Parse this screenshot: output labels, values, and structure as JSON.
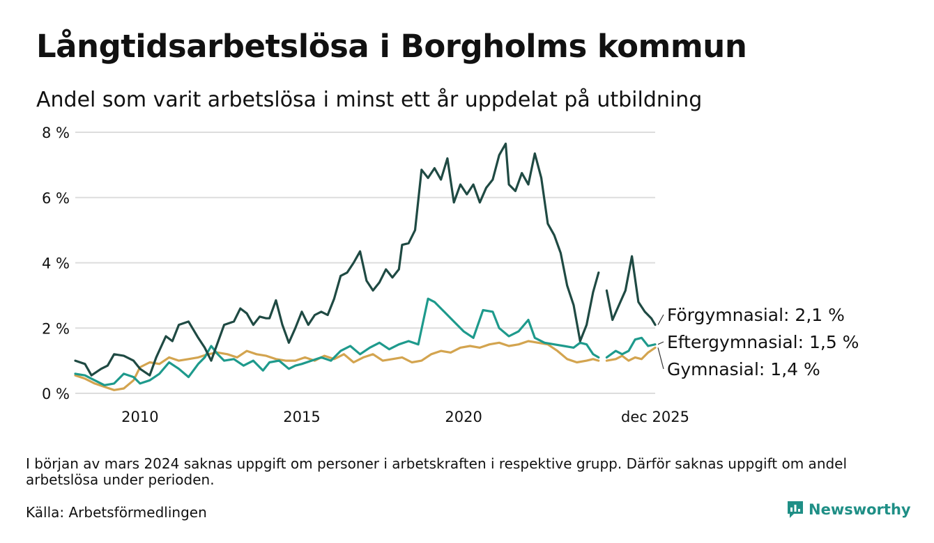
{
  "title": "Långtidsarbetslösa i Borgholms kommun",
  "subtitle": "Andel som varit arbetslösa i minst ett år uppdelat på utbildning",
  "note": "I början av mars 2024 saknas uppgift om personer i arbetskraften i respektive grupp. Därför saknas uppgift om andel arbetslösa under perioden.",
  "source": "Källa: Arbetsförmedlingen",
  "brand": "Newsworthy",
  "colors": {
    "forgymnasial": "#1f4a43",
    "eftergymnasial": "#1e9a8c",
    "gymnasial": "#d3a44f",
    "grid": "#dddddd",
    "brand": "#1f8f86"
  },
  "chart_data": {
    "type": "line",
    "title": "Långtidsarbetslösa i Borgholms kommun",
    "xlabel": "",
    "ylabel": "",
    "xlim": [
      2008.0,
      2025.92
    ],
    "ylim": [
      0,
      8
    ],
    "yticks": [
      0,
      2,
      4,
      6,
      8
    ],
    "ytick_labels": [
      "0 %",
      "2 %",
      "4 %",
      "6 %",
      "8 %"
    ],
    "xticks": [
      2010,
      2015,
      2020,
      2025.92
    ],
    "xtick_labels": [
      "2010",
      "2015",
      "2020",
      "dec 2025"
    ],
    "grid": true,
    "gap": [
      2024.17,
      2024.42
    ],
    "series": [
      {
        "name": "Förgymnasial",
        "label": "Förgymnasial: 2,1 %",
        "color": "#1f4a43",
        "points": [
          [
            2008.0,
            1.0
          ],
          [
            2008.3,
            0.9
          ],
          [
            2008.5,
            0.55
          ],
          [
            2008.8,
            0.75
          ],
          [
            2009.0,
            0.85
          ],
          [
            2009.2,
            1.2
          ],
          [
            2009.5,
            1.15
          ],
          [
            2009.8,
            1.0
          ],
          [
            2010.0,
            0.75
          ],
          [
            2010.3,
            0.55
          ],
          [
            2010.5,
            1.1
          ],
          [
            2010.8,
            1.75
          ],
          [
            2011.0,
            1.6
          ],
          [
            2011.2,
            2.1
          ],
          [
            2011.5,
            2.2
          ],
          [
            2011.8,
            1.7
          ],
          [
            2012.0,
            1.4
          ],
          [
            2012.2,
            1.0
          ],
          [
            2012.4,
            1.55
          ],
          [
            2012.6,
            2.1
          ],
          [
            2012.9,
            2.2
          ],
          [
            2013.1,
            2.6
          ],
          [
            2013.3,
            2.45
          ],
          [
            2013.5,
            2.1
          ],
          [
            2013.7,
            2.35
          ],
          [
            2013.9,
            2.3
          ],
          [
            2014.0,
            2.3
          ],
          [
            2014.2,
            2.85
          ],
          [
            2014.4,
            2.1
          ],
          [
            2014.6,
            1.55
          ],
          [
            2014.8,
            2.0
          ],
          [
            2015.0,
            2.5
          ],
          [
            2015.2,
            2.1
          ],
          [
            2015.4,
            2.4
          ],
          [
            2015.6,
            2.5
          ],
          [
            2015.8,
            2.4
          ],
          [
            2016.0,
            2.9
          ],
          [
            2016.2,
            3.6
          ],
          [
            2016.4,
            3.7
          ],
          [
            2016.6,
            4.0
          ],
          [
            2016.8,
            4.35
          ],
          [
            2017.0,
            3.45
          ],
          [
            2017.2,
            3.15
          ],
          [
            2017.4,
            3.4
          ],
          [
            2017.6,
            3.8
          ],
          [
            2017.8,
            3.55
          ],
          [
            2018.0,
            3.8
          ],
          [
            2018.1,
            4.55
          ],
          [
            2018.3,
            4.6
          ],
          [
            2018.5,
            5.0
          ],
          [
            2018.7,
            6.85
          ],
          [
            2018.9,
            6.6
          ],
          [
            2019.1,
            6.9
          ],
          [
            2019.3,
            6.55
          ],
          [
            2019.5,
            7.2
          ],
          [
            2019.7,
            5.85
          ],
          [
            2019.9,
            6.4
          ],
          [
            2020.1,
            6.1
          ],
          [
            2020.3,
            6.4
          ],
          [
            2020.5,
            5.85
          ],
          [
            2020.7,
            6.3
          ],
          [
            2020.9,
            6.55
          ],
          [
            2021.1,
            7.3
          ],
          [
            2021.3,
            7.65
          ],
          [
            2021.4,
            6.4
          ],
          [
            2021.6,
            6.2
          ],
          [
            2021.8,
            6.75
          ],
          [
            2022.0,
            6.4
          ],
          [
            2022.2,
            7.35
          ],
          [
            2022.4,
            6.6
          ],
          [
            2022.6,
            5.2
          ],
          [
            2022.8,
            4.85
          ],
          [
            2023.0,
            4.3
          ],
          [
            2023.2,
            3.3
          ],
          [
            2023.4,
            2.7
          ],
          [
            2023.6,
            1.6
          ],
          [
            2023.8,
            2.1
          ],
          [
            2024.0,
            3.1
          ],
          [
            2024.17,
            3.7
          ]
        ],
        "points_after_gap": [
          [
            2024.42,
            3.15
          ],
          [
            2024.6,
            2.25
          ],
          [
            2024.8,
            2.7
          ],
          [
            2025.0,
            3.15
          ],
          [
            2025.2,
            4.2
          ],
          [
            2025.4,
            2.8
          ],
          [
            2025.6,
            2.5
          ],
          [
            2025.8,
            2.3
          ],
          [
            2025.92,
            2.1
          ]
        ]
      },
      {
        "name": "Eftergymnasial",
        "label": "Eftergymnasial: 1,5 %",
        "color": "#1e9a8c",
        "points": [
          [
            2008.0,
            0.6
          ],
          [
            2008.3,
            0.55
          ],
          [
            2008.6,
            0.4
          ],
          [
            2008.9,
            0.25
          ],
          [
            2009.2,
            0.3
          ],
          [
            2009.5,
            0.6
          ],
          [
            2009.8,
            0.5
          ],
          [
            2010.0,
            0.3
          ],
          [
            2010.3,
            0.4
          ],
          [
            2010.6,
            0.6
          ],
          [
            2010.9,
            0.95
          ],
          [
            2011.2,
            0.75
          ],
          [
            2011.5,
            0.5
          ],
          [
            2011.8,
            0.9
          ],
          [
            2012.0,
            1.1
          ],
          [
            2012.2,
            1.45
          ],
          [
            2012.4,
            1.2
          ],
          [
            2012.6,
            1.0
          ],
          [
            2012.9,
            1.05
          ],
          [
            2013.2,
            0.85
          ],
          [
            2013.5,
            1.0
          ],
          [
            2013.8,
            0.7
          ],
          [
            2014.0,
            0.95
          ],
          [
            2014.3,
            1.0
          ],
          [
            2014.6,
            0.75
          ],
          [
            2014.8,
            0.85
          ],
          [
            2015.0,
            0.9
          ],
          [
            2015.3,
            1.0
          ],
          [
            2015.6,
            1.1
          ],
          [
            2015.9,
            1.0
          ],
          [
            2016.2,
            1.3
          ],
          [
            2016.5,
            1.45
          ],
          [
            2016.8,
            1.2
          ],
          [
            2017.1,
            1.4
          ],
          [
            2017.4,
            1.55
          ],
          [
            2017.7,
            1.35
          ],
          [
            2018.0,
            1.5
          ],
          [
            2018.3,
            1.6
          ],
          [
            2018.6,
            1.5
          ],
          [
            2018.9,
            2.9
          ],
          [
            2019.1,
            2.8
          ],
          [
            2019.4,
            2.5
          ],
          [
            2019.7,
            2.2
          ],
          [
            2020.0,
            1.9
          ],
          [
            2020.3,
            1.7
          ],
          [
            2020.6,
            2.55
          ],
          [
            2020.9,
            2.5
          ],
          [
            2021.1,
            2.0
          ],
          [
            2021.4,
            1.75
          ],
          [
            2021.7,
            1.9
          ],
          [
            2022.0,
            2.25
          ],
          [
            2022.2,
            1.7
          ],
          [
            2022.5,
            1.55
          ],
          [
            2022.8,
            1.5
          ],
          [
            2023.1,
            1.45
          ],
          [
            2023.4,
            1.4
          ],
          [
            2023.6,
            1.55
          ],
          [
            2023.8,
            1.5
          ],
          [
            2024.0,
            1.2
          ],
          [
            2024.17,
            1.1
          ]
        ],
        "points_after_gap": [
          [
            2024.42,
            1.1
          ],
          [
            2024.7,
            1.3
          ],
          [
            2024.9,
            1.2
          ],
          [
            2025.1,
            1.3
          ],
          [
            2025.3,
            1.65
          ],
          [
            2025.5,
            1.7
          ],
          [
            2025.7,
            1.45
          ],
          [
            2025.92,
            1.5
          ]
        ]
      },
      {
        "name": "Gymnasial",
        "label": "Gymnasial: 1,4 %",
        "color": "#d3a44f",
        "points": [
          [
            2008.0,
            0.55
          ],
          [
            2008.3,
            0.45
          ],
          [
            2008.6,
            0.3
          ],
          [
            2008.9,
            0.2
          ],
          [
            2009.2,
            0.1
          ],
          [
            2009.5,
            0.15
          ],
          [
            2009.8,
            0.4
          ],
          [
            2010.0,
            0.8
          ],
          [
            2010.3,
            0.95
          ],
          [
            2010.6,
            0.9
          ],
          [
            2010.9,
            1.1
          ],
          [
            2011.2,
            1.0
          ],
          [
            2011.5,
            1.05
          ],
          [
            2011.8,
            1.1
          ],
          [
            2012.1,
            1.2
          ],
          [
            2012.4,
            1.25
          ],
          [
            2012.7,
            1.2
          ],
          [
            2013.0,
            1.1
          ],
          [
            2013.3,
            1.3
          ],
          [
            2013.6,
            1.2
          ],
          [
            2013.9,
            1.15
          ],
          [
            2014.2,
            1.05
          ],
          [
            2014.5,
            1.0
          ],
          [
            2014.8,
            1.0
          ],
          [
            2015.1,
            1.1
          ],
          [
            2015.4,
            1.0
          ],
          [
            2015.7,
            1.15
          ],
          [
            2016.0,
            1.05
          ],
          [
            2016.3,
            1.2
          ],
          [
            2016.6,
            0.95
          ],
          [
            2016.9,
            1.1
          ],
          [
            2017.2,
            1.2
          ],
          [
            2017.5,
            1.0
          ],
          [
            2017.8,
            1.05
          ],
          [
            2018.1,
            1.1
          ],
          [
            2018.4,
            0.95
          ],
          [
            2018.7,
            1.0
          ],
          [
            2019.0,
            1.2
          ],
          [
            2019.3,
            1.3
          ],
          [
            2019.6,
            1.25
          ],
          [
            2019.9,
            1.4
          ],
          [
            2020.2,
            1.45
          ],
          [
            2020.5,
            1.4
          ],
          [
            2020.8,
            1.5
          ],
          [
            2021.1,
            1.55
          ],
          [
            2021.4,
            1.45
          ],
          [
            2021.7,
            1.5
          ],
          [
            2022.0,
            1.6
          ],
          [
            2022.3,
            1.55
          ],
          [
            2022.6,
            1.5
          ],
          [
            2022.9,
            1.3
          ],
          [
            2023.2,
            1.05
          ],
          [
            2023.5,
            0.95
          ],
          [
            2023.8,
            1.0
          ],
          [
            2024.0,
            1.05
          ],
          [
            2024.17,
            1.0
          ]
        ],
        "points_after_gap": [
          [
            2024.42,
            1.0
          ],
          [
            2024.7,
            1.05
          ],
          [
            2024.9,
            1.15
          ],
          [
            2025.1,
            1.0
          ],
          [
            2025.3,
            1.1
          ],
          [
            2025.5,
            1.05
          ],
          [
            2025.7,
            1.25
          ],
          [
            2025.92,
            1.4
          ]
        ]
      }
    ]
  }
}
